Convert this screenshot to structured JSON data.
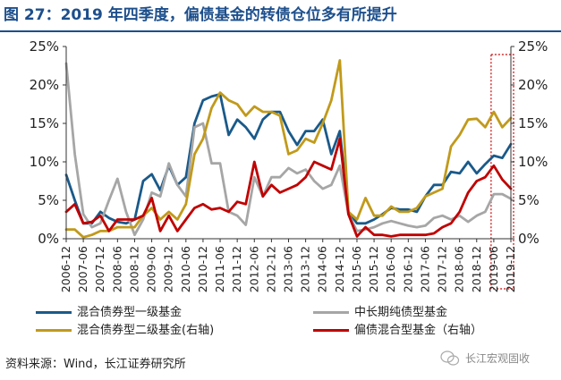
{
  "title": "图 27：2019 年四季度，偏债基金的转债仓位多有所提升",
  "source": "资料来源：Wind，长江证券研究所",
  "watermark": "长江宏观固收",
  "chart_data": {
    "type": "line",
    "title": "图 27：2019 年四季度，偏债基金的转债仓位多有所提升",
    "x_categories": [
      "2006-12",
      "2007-03",
      "2007-06",
      "2007-09",
      "2007-12",
      "2008-03",
      "2008-06",
      "2008-09",
      "2008-12",
      "2009-03",
      "2009-06",
      "2009-09",
      "2009-12",
      "2010-03",
      "2010-06",
      "2010-09",
      "2010-12",
      "2011-03",
      "2011-06",
      "2011-09",
      "2011-12",
      "2012-03",
      "2012-06",
      "2012-09",
      "2012-12",
      "2013-03",
      "2013-06",
      "2013-09",
      "2013-12",
      "2014-03",
      "2014-06",
      "2014-09",
      "2014-12",
      "2015-03",
      "2015-06",
      "2015-09",
      "2015-12",
      "2016-03",
      "2016-06",
      "2016-09",
      "2016-12",
      "2017-03",
      "2017-06",
      "2017-09",
      "2017-12",
      "2018-03",
      "2018-06",
      "2018-09",
      "2018-12",
      "2019-03",
      "2019-06",
      "2019-09",
      "2019-12"
    ],
    "tick_labels": [
      "2006-12",
      "2007-06",
      "2007-12",
      "2008-06",
      "2008-12",
      "2009-06",
      "2009-12",
      "2010-06",
      "2010-12",
      "2011-06",
      "2011-12",
      "2012-06",
      "2012-12",
      "2013-06",
      "2013-12",
      "2014-06",
      "2014-12",
      "2015-06",
      "2015-12",
      "2016-06",
      "2016-12",
      "2017-06",
      "2017-12",
      "2018-06",
      "2018-12",
      "2019-06",
      "2019-12"
    ],
    "y_left_ticks": [
      "0%",
      "5%",
      "10%",
      "15%",
      "20%",
      "25%"
    ],
    "y_right_ticks": [
      "0%",
      "5%",
      "10%",
      "15%",
      "20%",
      "25%"
    ],
    "ylim_left": [
      0,
      25
    ],
    "ylim_right": [
      0,
      25
    ],
    "highlight_range": [
      "2019-06",
      "2019-12"
    ],
    "series": [
      {
        "name": "混合债券型一级基金",
        "axis": "left",
        "color": "#1a5a8a",
        "values": [
          8.3,
          5.0,
          2.0,
          2.0,
          3.5,
          2.7,
          2.2,
          2.0,
          2.5,
          7.5,
          8.4,
          6.3,
          9.5,
          7.0,
          8.0,
          15.0,
          18.0,
          18.5,
          18.8,
          13.5,
          15.5,
          14.5,
          13.0,
          15.5,
          16.5,
          16.5,
          14.0,
          12.2,
          14.0,
          14.0,
          15.5,
          11.0,
          14.0,
          3.5,
          2.0,
          2.0,
          2.5,
          3.2,
          4.0,
          3.8,
          3.8,
          3.5,
          5.5,
          7.0,
          7.0,
          8.7,
          8.5,
          10.0,
          8.5,
          9.7,
          10.8,
          10.5,
          12.3
        ]
      },
      {
        "name": "中长期纯债型基金",
        "axis": "left",
        "color": "#a6a6a6",
        "values": [
          22.8,
          11.0,
          3.2,
          1.5,
          2.0,
          5.0,
          7.8,
          3.5,
          0.5,
          2.5,
          6.0,
          5.5,
          9.8,
          7.0,
          5.5,
          14.5,
          15.0,
          9.8,
          9.8,
          3.5,
          3.0,
          1.8,
          8.0,
          5.5,
          8.0,
          8.0,
          9.2,
          8.5,
          9.0,
          7.5,
          6.5,
          7.0,
          9.5,
          3.2,
          1.0,
          1.2,
          1.5,
          2.0,
          2.3,
          2.0,
          1.7,
          1.5,
          1.7,
          2.7,
          3.0,
          2.5,
          3.0,
          2.2,
          3.0,
          3.5,
          5.8,
          5.8,
          5.2
        ]
      },
      {
        "name": "混合债券型二级基金(右轴)",
        "axis": "right",
        "color": "#c19a1b",
        "values": [
          1.2,
          1.2,
          0.2,
          0.5,
          1.0,
          1.0,
          1.5,
          1.5,
          1.5,
          3.0,
          4.0,
          2.5,
          3.5,
          2.5,
          4.5,
          11.0,
          13.0,
          17.0,
          19.0,
          18.0,
          17.5,
          16.0,
          17.2,
          16.5,
          16.5,
          16.0,
          11.0,
          11.5,
          13.0,
          12.5,
          15.0,
          18.0,
          23.2,
          3.5,
          2.5,
          5.3,
          3.0,
          3.0,
          4.2,
          3.5,
          3.5,
          4.0,
          5.5,
          6.0,
          6.5,
          12.0,
          13.5,
          15.5,
          15.6,
          14.5,
          16.5,
          14.5,
          15.7
        ]
      },
      {
        "name": "偏债混合型基金（右轴）",
        "axis": "right",
        "color": "#c00000",
        "values": [
          3.5,
          4.5,
          2.0,
          2.2,
          3.0,
          1.0,
          2.5,
          2.5,
          2.5,
          3.0,
          5.3,
          1.0,
          3.0,
          1.0,
          2.5,
          4.0,
          4.5,
          3.8,
          4.0,
          3.5,
          4.8,
          4.5,
          10.0,
          5.5,
          7.0,
          6.0,
          6.5,
          7.0,
          8.0,
          10.0,
          9.5,
          9.0,
          13.0,
          3.2,
          0.3,
          1.5,
          0.5,
          0.5,
          0.3,
          0.5,
          0.5,
          0.5,
          0.5,
          0.7,
          1.5,
          2.0,
          3.5,
          6.0,
          7.5,
          8.0,
          9.5,
          7.7,
          6.5
        ]
      }
    ]
  }
}
